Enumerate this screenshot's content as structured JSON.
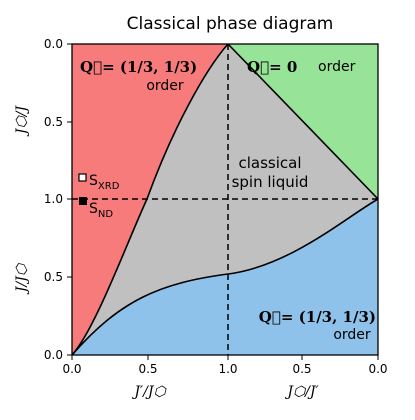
{
  "title": "Classical phase diagram",
  "colors": {
    "red_region": "#f77b7b",
    "green_region": "#97e397",
    "blue_region": "#8fc2ea",
    "gray_region": "#c0c0c0"
  },
  "regions": {
    "q13_top_line1": "Q⃗= (1/3, 1/3)",
    "q13_top_line2": "order",
    "q0_line1": "Q⃗= 0",
    "q0_line2": "order",
    "csl_line1": "classical",
    "csl_line2": "spin liquid",
    "q13_bottom_line1": "Q⃗= (1/3, 1/3)",
    "q13_bottom_line2": "order"
  },
  "markers": [
    {
      "label": "S",
      "sub": "XRD",
      "style": "open-square"
    },
    {
      "label": "S",
      "sub": "ND",
      "style": "filled-square"
    }
  ],
  "axes": {
    "x_bottom_left_label": "J′/J⬡",
    "x_bottom_right_label": "J⬡/J′",
    "y_top_label": "J⬡/J",
    "y_bottom_label": "J/J⬡",
    "x_ticks": [
      "0.0",
      "0.5",
      "1.0",
      "0.5",
      "0.0"
    ],
    "y_ticks_top": [
      "0.0",
      "0.5"
    ],
    "y_ticks_mid": [
      "1.0"
    ],
    "y_ticks_bottom": [
      "0.5",
      "0.0"
    ]
  }
}
